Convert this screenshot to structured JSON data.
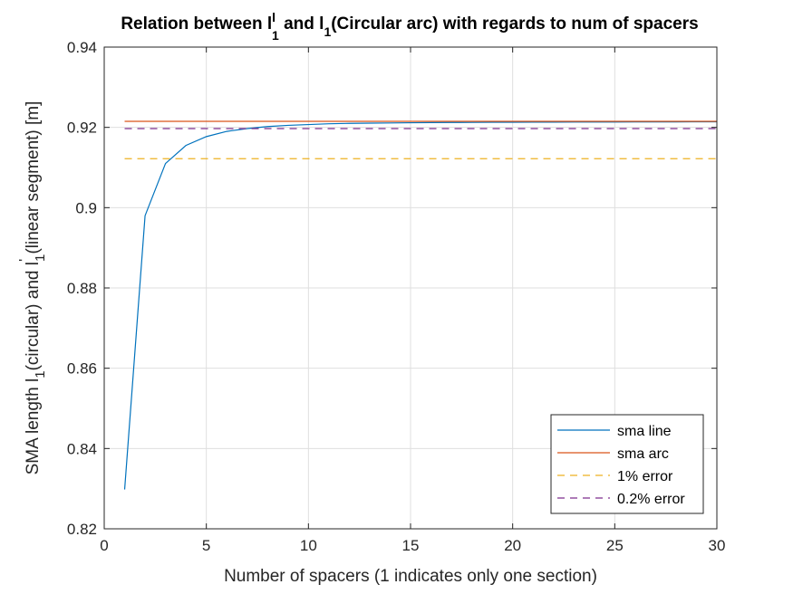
{
  "chart_data": {
    "type": "line",
    "title": {
      "prefix": "Relation between l",
      "sup": "l",
      "sub1": "1",
      "middle": " and l",
      "sub2": "1",
      "suffix": "(Circular arc) with regards to num of spacers"
    },
    "xlabel": "Number of spacers (1 indicates only one section)",
    "ylabel": {
      "part1": "SMA length l",
      "sub1": "1",
      "part2": "(circular) and l",
      "sub2": "1",
      "sup": "'",
      "part3": " (linear segment) [m]"
    },
    "xlim": [
      0,
      30
    ],
    "ylim": [
      0.82,
      0.94
    ],
    "x_ticks": [
      0,
      5,
      10,
      15,
      20,
      25,
      30
    ],
    "x_tick_labels": [
      "0",
      "5",
      "10",
      "15",
      "20",
      "25",
      "30"
    ],
    "y_ticks": [
      0.82,
      0.84,
      0.86,
      0.88,
      0.9,
      0.92,
      0.94
    ],
    "y_tick_labels": [
      "0.82",
      "0.84",
      "0.86",
      "0.88",
      "0.9",
      "0.92",
      "0.94"
    ],
    "grid": true,
    "legend_position": "bottom-right",
    "series": [
      {
        "name": "sma line",
        "style": "solid",
        "color": "#0072BD",
        "x": [
          1,
          2,
          3,
          4,
          5,
          6,
          7,
          8,
          9,
          10,
          11,
          12,
          13,
          14,
          15,
          16,
          17,
          18,
          19,
          20,
          21,
          22,
          23,
          24,
          25,
          26,
          27,
          28,
          29,
          30
        ],
        "y": [
          0.8298,
          0.898,
          0.911,
          0.9155,
          0.9177,
          0.919,
          0.9197,
          0.9202,
          0.9205,
          0.9207,
          0.9209,
          0.921,
          0.92105,
          0.9211,
          0.92115,
          0.9212,
          0.92122,
          0.92124,
          0.92126,
          0.92128,
          0.9213,
          0.92131,
          0.92132,
          0.92133,
          0.92134,
          0.92135,
          0.92136,
          0.92137,
          0.92138,
          0.92139
        ]
      },
      {
        "name": "sma arc",
        "style": "solid",
        "color": "#D95319",
        "x": [
          1,
          30
        ],
        "y": [
          0.9215,
          0.9215
        ]
      },
      {
        "name": "1% error",
        "style": "dashed",
        "color": "#EDB120",
        "x": [
          1,
          30
        ],
        "y": [
          0.9122,
          0.9122
        ]
      },
      {
        "name": "0.2% error",
        "style": "dashed",
        "color": "#7E2F8E",
        "x": [
          1,
          30
        ],
        "y": [
          0.9197,
          0.9197
        ]
      }
    ]
  }
}
